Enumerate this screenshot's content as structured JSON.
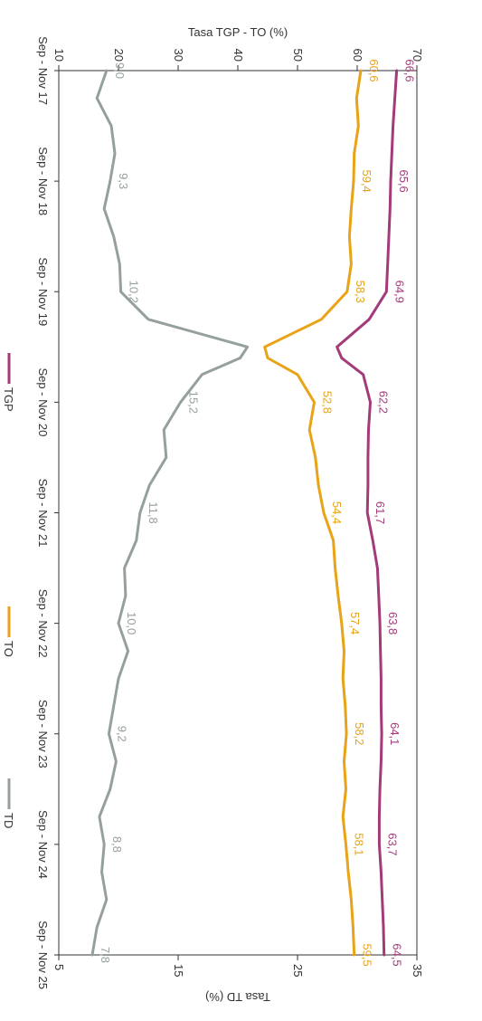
{
  "chart_data": {
    "type": "line",
    "orientation": "rotated-90-clockwise",
    "x_label": "",
    "categories": [
      "Sep - Nov 17",
      "Sep - Nov 18",
      "Sep - Nov 19",
      "Sep - Nov 20",
      "Sep - Nov 21",
      "Sep - Nov 22",
      "Sep - Nov 23",
      "Sep - Nov 24",
      "Sep - Nov 25"
    ],
    "x": [
      0,
      0.25,
      0.5,
      0.75,
      1,
      1.25,
      1.5,
      1.75,
      2,
      2.25,
      2.5,
      2.6,
      2.75,
      3,
      3.25,
      3.5,
      3.75,
      4,
      4.25,
      4.5,
      4.75,
      5,
      5.25,
      5.5,
      5.75,
      6,
      6.25,
      6.5,
      6.75,
      7,
      7.25,
      7.5,
      7.75,
      8
    ],
    "left_axis": {
      "label": "Tasa TGP - TO (%)",
      "range": [
        10,
        70
      ],
      "ticks": [
        70,
        60,
        50,
        40,
        30,
        20,
        10
      ]
    },
    "right_axis": {
      "label": "Tasa TD (%)",
      "range": [
        5,
        35
      ],
      "ticks": [
        35,
        25,
        15,
        5
      ]
    },
    "series": [
      {
        "name": "TGP",
        "axis": "left",
        "color": "#a33a7a",
        "values": [
          66.6,
          66.3,
          66.0,
          65.8,
          65.6,
          65.5,
          65.3,
          65.1,
          64.9,
          62.0,
          56.6,
          57.4,
          61.0,
          62.2,
          61.9,
          61.8,
          61.8,
          61.7,
          62.6,
          63.4,
          63.6,
          63.8,
          63.9,
          64.0,
          64.0,
          64.1,
          64.0,
          63.8,
          63.7,
          63.7,
          64.0,
          64.2,
          64.4,
          64.5
        ],
        "labels": [
          "66,6",
          "65,6",
          "64,9",
          "62,2",
          "61,7",
          "63,8",
          "64,1",
          "63,7",
          "64,5"
        ],
        "label_index": [
          0,
          4,
          8,
          13,
          17,
          21,
          25,
          29,
          33
        ]
      },
      {
        "name": "TO",
        "axis": "left",
        "color": "#e8a317",
        "values": [
          60.6,
          59.9,
          60.2,
          59.5,
          59.4,
          59.0,
          58.7,
          59.0,
          58.3,
          54.0,
          44.5,
          45.0,
          50.0,
          52.8,
          52.0,
          53.0,
          53.5,
          54.4,
          56.0,
          56.3,
          56.8,
          57.4,
          57.8,
          57.6,
          58.0,
          58.2,
          57.8,
          58.1,
          57.6,
          58.1,
          58.5,
          59.0,
          59.3,
          59.5
        ],
        "labels": [
          "60,6",
          "59,4",
          "58,3",
          "52,8",
          "54,4",
          "57,4",
          "58,2",
          "58,1",
          "59,5"
        ],
        "label_index": [
          0,
          4,
          8,
          13,
          17,
          21,
          25,
          29,
          33
        ]
      },
      {
        "name": "TD",
        "axis": "right",
        "color": "#95a09c",
        "values": [
          9.0,
          8.2,
          9.4,
          9.7,
          9.3,
          8.8,
          9.6,
          10.1,
          10.2,
          12.5,
          20.8,
          20.2,
          17.0,
          15.2,
          13.8,
          14.0,
          12.6,
          11.8,
          11.5,
          10.5,
          10.6,
          10.0,
          10.8,
          10.0,
          9.6,
          9.2,
          9.8,
          9.3,
          8.4,
          8.8,
          8.6,
          9.0,
          8.2,
          7.8
        ],
        "labels": [
          "9,0",
          "9,3",
          "10,2",
          "15,2",
          "11,8",
          "10,0",
          "9,2",
          "8,8",
          "7,8"
        ],
        "label_index": [
          0,
          4,
          8,
          13,
          17,
          21,
          25,
          29,
          33
        ]
      }
    ],
    "legend": {
      "position": "bottom",
      "items": [
        "TGP",
        "TO",
        "TD"
      ]
    },
    "grid": false
  }
}
